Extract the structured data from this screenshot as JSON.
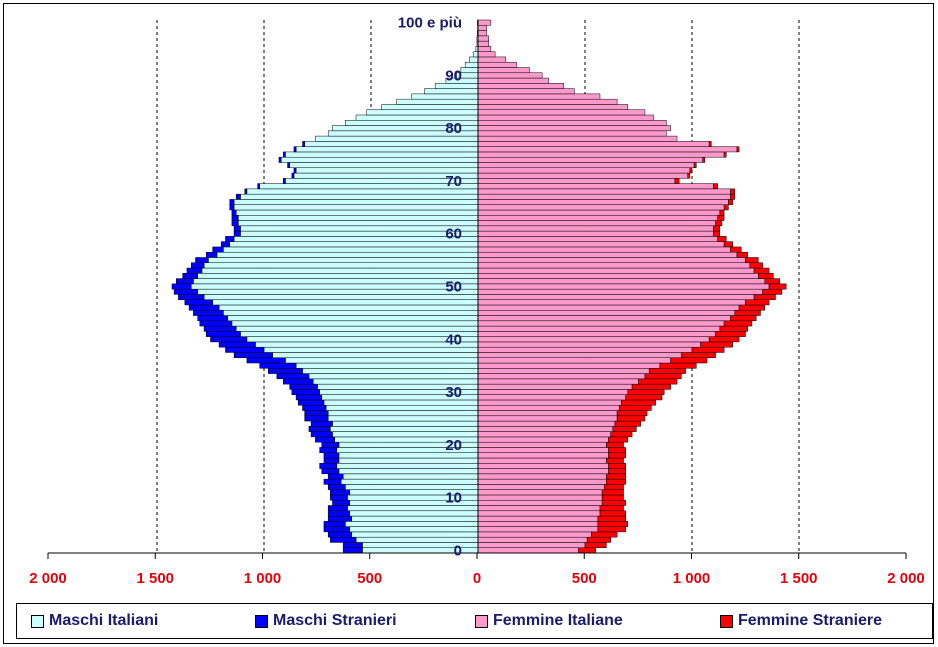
{
  "chart_data": {
    "type": "bar",
    "orientation": "horizontal-population-pyramid",
    "x_ticks": [
      "2 000",
      "1 500",
      "1 000",
      "500",
      "0",
      "500",
      "1 000",
      "1 500",
      "2 000"
    ],
    "xlim": [
      -2000,
      2000
    ],
    "y_ticks": [
      "0",
      "10",
      "20",
      "30",
      "40",
      "50",
      "60",
      "70",
      "80",
      "90",
      "100 e più"
    ],
    "ylim": [
      0,
      100
    ],
    "grid": "vertical dashed",
    "colors": {
      "maschi_italiani": "#ccffff",
      "maschi_stranieri": "#0000ff",
      "femmine_italiane": "#ff99cc",
      "femmine_straniere": "#ff0000"
    },
    "legend": {
      "position": "bottom",
      "items": [
        "Maschi Italiani",
        "Maschi Stranieri",
        "Femmine Italiane",
        "Femmine Straniere"
      ]
    },
    "ages": [
      0,
      1,
      2,
      3,
      4,
      5,
      6,
      7,
      8,
      9,
      10,
      11,
      12,
      13,
      14,
      15,
      16,
      17,
      18,
      19,
      20,
      21,
      22,
      23,
      24,
      25,
      26,
      27,
      28,
      29,
      30,
      31,
      32,
      33,
      34,
      35,
      36,
      37,
      38,
      39,
      40,
      41,
      42,
      43,
      44,
      45,
      46,
      47,
      48,
      49,
      50,
      51,
      52,
      53,
      54,
      55,
      56,
      57,
      58,
      59,
      60,
      61,
      62,
      63,
      64,
      65,
      66,
      67,
      68,
      69,
      70,
      71,
      72,
      73,
      74,
      75,
      76,
      77,
      78,
      79,
      80,
      81,
      82,
      83,
      84,
      85,
      86,
      87,
      88,
      89,
      90,
      91,
      92,
      93,
      94,
      95,
      96,
      97,
      98,
      99,
      100
    ],
    "series": [
      {
        "name": "Maschi Italiani",
        "values": [
          540,
          540,
          570,
          590,
          600,
          620,
          590,
          600,
          610,
          600,
          610,
          600,
          620,
          640,
          630,
          650,
          660,
          650,
          650,
          660,
          650,
          670,
          680,
          690,
          680,
          700,
          700,
          710,
          720,
          730,
          740,
          750,
          770,
          790,
          820,
          850,
          900,
          960,
          1000,
          1040,
          1080,
          1110,
          1130,
          1150,
          1170,
          1190,
          1210,
          1240,
          1280,
          1310,
          1340,
          1330,
          1310,
          1290,
          1280,
          1260,
          1220,
          1190,
          1160,
          1140,
          1110,
          1110,
          1120,
          1120,
          1130,
          1140,
          1140,
          1110,
          1080,
          1020,
          900,
          860,
          850,
          880,
          920,
          900,
          850,
          810,
          760,
          700,
          680,
          620,
          570,
          520,
          450,
          380,
          310,
          250,
          200,
          150,
          100,
          80,
          60,
          40,
          20,
          10,
          5,
          5,
          3,
          2,
          3
        ],
        "full_values": [
          540,
          540,
          570,
          590,
          600,
          620,
          590,
          600,
          610,
          600,
          610,
          600,
          620,
          640,
          630,
          650,
          660,
          650,
          650,
          660,
          650,
          670,
          680,
          690,
          680,
          700,
          700,
          710,
          720,
          730,
          740,
          750,
          770,
          790,
          820,
          850,
          900,
          960,
          1000,
          1040,
          1080,
          1110,
          1130,
          1150,
          1170,
          1190,
          1210,
          1240,
          1280,
          1310,
          1340,
          1330,
          1310,
          1290,
          1280,
          1260,
          1220,
          1190,
          1160,
          1140,
          1110,
          1110,
          1120,
          1120,
          1130,
          1140,
          1140,
          1110,
          1080,
          1020,
          900,
          860,
          850,
          880,
          920,
          900,
          850,
          810,
          760,
          700,
          680,
          620,
          570,
          520,
          450,
          380,
          310,
          250,
          200,
          150,
          100,
          80,
          60,
          40,
          20,
          10,
          5,
          5,
          3,
          2,
          3
        ]
      },
      {
        "name": "Maschi Stranieri",
        "values": [
          90,
          90,
          120,
          110,
          120,
          100,
          110,
          100,
          90,
          80,
          80,
          90,
          80,
          80,
          70,
          80,
          80,
          70,
          70,
          80,
          80,
          90,
          100,
          100,
          100,
          110,
          110,
          110,
          120,
          120,
          130,
          130,
          140,
          150,
          160,
          170,
          180,
          180,
          180,
          170,
          170,
          160,
          150,
          150,
          140,
          140,
          140,
          130,
          120,
          110,
          90,
          80,
          70,
          70,
          60,
          60,
          50,
          50,
          40,
          40,
          30,
          30,
          30,
          30,
          20,
          20,
          20,
          20,
          10,
          10,
          10,
          10,
          10,
          10,
          10,
          10,
          10,
          10,
          0,
          0,
          0,
          0,
          0,
          0,
          0,
          0,
          0,
          0,
          0,
          0,
          0,
          0,
          0,
          0,
          0,
          0,
          0,
          0,
          0,
          0,
          0
        ]
      },
      {
        "name": "Femmine Italiane",
        "values": [
          470,
          500,
          510,
          530,
          560,
          560,
          560,
          570,
          570,
          580,
          580,
          580,
          590,
          600,
          600,
          610,
          610,
          600,
          610,
          610,
          600,
          610,
          620,
          630,
          640,
          650,
          650,
          660,
          670,
          690,
          700,
          720,
          750,
          780,
          800,
          850,
          900,
          950,
          1000,
          1040,
          1080,
          1110,
          1130,
          1150,
          1180,
          1200,
          1220,
          1250,
          1290,
          1330,
          1360,
          1340,
          1310,
          1290,
          1270,
          1250,
          1210,
          1180,
          1150,
          1120,
          1100,
          1100,
          1110,
          1120,
          1130,
          1150,
          1170,
          1180,
          1180,
          1100,
          920,
          980,
          990,
          1010,
          1050,
          1150,
          1210,
          1080,
          930,
          880,
          900,
          880,
          820,
          780,
          700,
          650,
          570,
          450,
          400,
          330,
          300,
          240,
          180,
          130,
          80,
          60,
          50,
          50,
          40,
          40,
          60
        ],
        "full_values": [
          470,
          500,
          510,
          530,
          560,
          560,
          560,
          570,
          570,
          580,
          580,
          580,
          590,
          600,
          600,
          610,
          610,
          600,
          610,
          610,
          600,
          610,
          620,
          630,
          640,
          650,
          650,
          660,
          670,
          690,
          700,
          720,
          750,
          780,
          800,
          850,
          900,
          950,
          1000,
          1040,
          1080,
          1110,
          1130,
          1150,
          1180,
          1200,
          1220,
          1250,
          1290,
          1330,
          1360,
          1340,
          1310,
          1290,
          1270,
          1250,
          1210,
          1180,
          1150,
          1120,
          1100,
          1100,
          1110,
          1120,
          1130,
          1150,
          1170,
          1180,
          1180,
          1100,
          920,
          980,
          990,
          1010,
          1050,
          1150,
          1210,
          1080,
          930,
          880,
          900,
          880,
          820,
          780,
          700,
          650,
          570,
          450,
          400,
          330,
          300,
          240,
          180,
          130,
          80,
          60,
          50,
          50,
          40,
          40,
          60
        ]
      },
      {
        "name": "Femmine Straniere",
        "values": [
          80,
          100,
          110,
          120,
          130,
          140,
          130,
          120,
          110,
          110,
          100,
          100,
          90,
          90,
          90,
          80,
          80,
          80,
          80,
          80,
          80,
          90,
          100,
          110,
          120,
          130,
          140,
          150,
          160,
          170,
          170,
          180,
          180,
          170,
          170,
          170,
          170,
          160,
          150,
          150,
          140,
          140,
          130,
          130,
          120,
          120,
          120,
          110,
          100,
          90,
          80,
          70,
          70,
          70,
          60,
          60,
          50,
          50,
          40,
          40,
          30,
          30,
          30,
          30,
          20,
          20,
          20,
          20,
          20,
          20,
          20,
          10,
          10,
          10,
          10,
          10,
          10,
          10,
          0,
          0,
          0,
          0,
          0,
          0,
          0,
          0,
          0,
          0,
          0,
          0,
          0,
          0,
          0,
          0,
          0,
          0,
          0,
          0,
          0,
          0,
          0
        ]
      }
    ]
  }
}
